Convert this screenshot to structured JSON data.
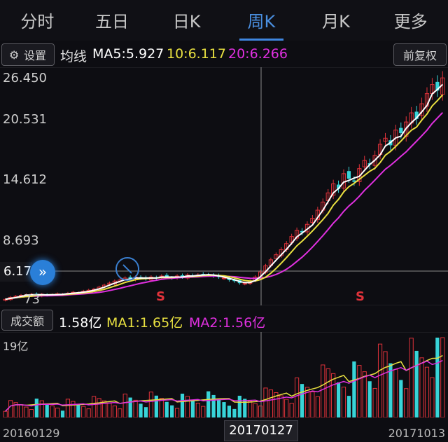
{
  "tabs": [
    {
      "label": "分时"
    },
    {
      "label": "五日"
    },
    {
      "label": "日K"
    },
    {
      "label": "周K",
      "active": true
    },
    {
      "label": "月K"
    },
    {
      "label": "更多"
    }
  ],
  "ma_bar": {
    "settings_label": "设置",
    "title": "均线",
    "ma5": "MA5:5.927",
    "ma10": "10:6.117",
    "ma20": "20:6.266",
    "adjust_label": "前复权"
  },
  "price_axis": [
    "26.450",
    "20.531",
    "14.612",
    "8.693"
  ],
  "cursor_price": "6.17",
  "bottom_price": "73",
  "signals": [
    "S",
    "S"
  ],
  "volume_bar": {
    "label": "成交额",
    "value": "1.58亿",
    "ma1": "MA1:1.65亿",
    "ma2": "MA2:1.56亿",
    "max": "19亿"
  },
  "dates": {
    "start": "20160129",
    "cursor": "20170127",
    "end": "20171013"
  },
  "colors": {
    "up": "#e0323a",
    "down": "#38d4d8",
    "ma5": "#ffffff",
    "ma10": "#e8e040",
    "ma20": "#e030e0",
    "accent": "#3f86e0"
  },
  "chart_data": {
    "type": "candlestick",
    "y_ticks": [
      8.693,
      14.612,
      20.531,
      26.45
    ],
    "ylim": [
      4.0,
      27.5
    ],
    "ma_labels": [
      "MA5:5.927",
      "10:6.117",
      "20:6.266"
    ],
    "close": [
      4.6,
      4.8,
      4.9,
      5.0,
      5.05,
      5.1,
      5.0,
      5.1,
      5.0,
      5.05,
      5.15,
      5.1,
      5.2,
      5.3,
      5.25,
      5.4,
      5.5,
      5.6,
      5.8,
      6.0,
      6.2,
      6.4,
      6.5,
      6.7,
      6.6,
      6.8,
      6.7,
      6.6,
      6.8,
      6.7,
      6.9,
      6.8,
      6.7,
      6.9,
      6.8,
      7.0,
      6.9,
      7.0,
      7.1,
      7.0,
      6.9,
      6.8,
      6.7,
      6.5,
      6.4,
      6.2,
      6.17,
      6.4,
      6.8,
      7.3,
      7.9,
      8.5,
      9.0,
      9.5,
      10.1,
      10.8,
      11.4,
      11.2,
      12.0,
      12.6,
      13.4,
      14.2,
      15.1,
      16.0,
      15.5,
      17.0,
      16.5,
      16.2,
      17.5,
      18.3,
      17.9,
      18.8,
      19.9,
      20.5,
      19.8,
      21.3,
      21.0,
      22.1,
      23.0,
      22.4,
      23.9,
      24.9,
      25.8,
      25.2,
      26.45
    ],
    "volume_max_label": "19亿",
    "volume_ma1": "1.65亿",
    "volume_ma2": "1.56亿",
    "volume_last": "1.58亿",
    "x_labels": [
      "20160129",
      "20170127",
      "20171013"
    ]
  }
}
